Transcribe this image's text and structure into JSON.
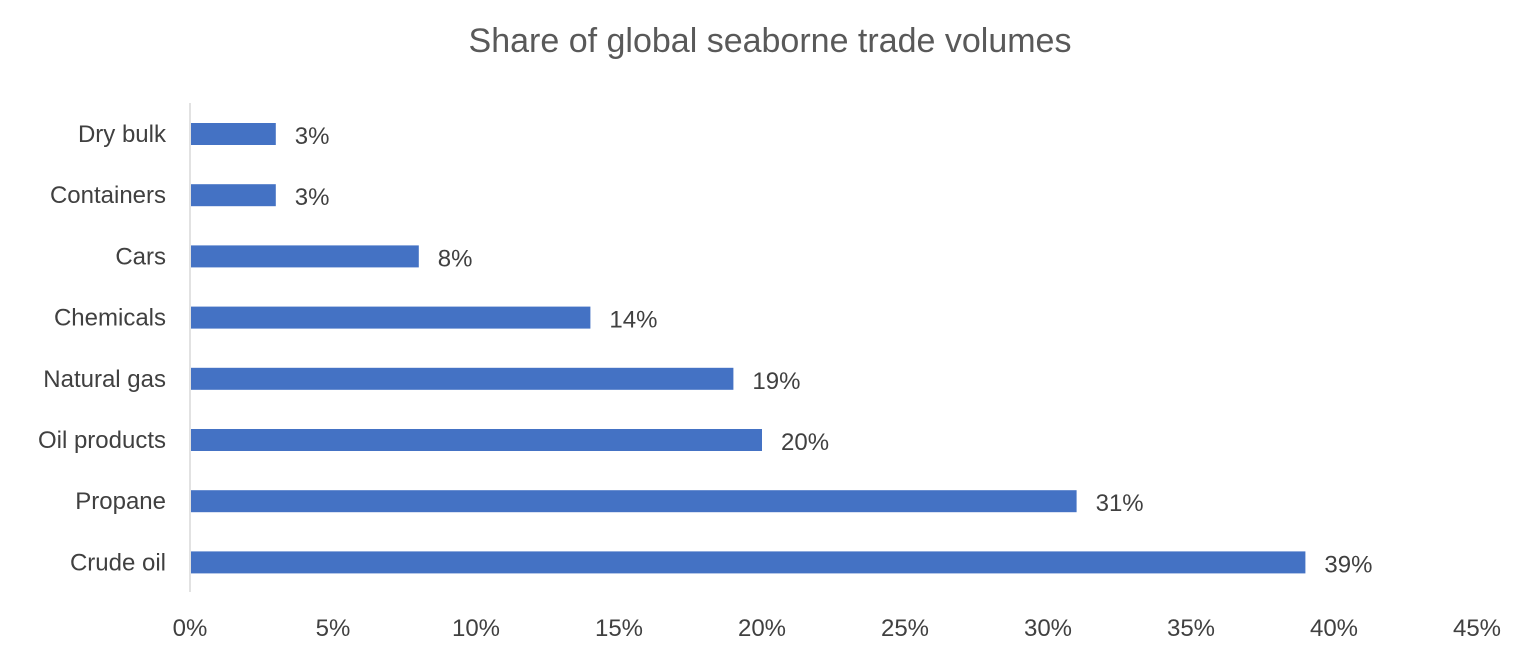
{
  "chart_data": {
    "type": "bar",
    "orientation": "horizontal",
    "title": "Share of global seaborne trade volumes",
    "categories": [
      "Dry bulk",
      "Containers",
      "Cars",
      "Chemicals",
      "Natural gas",
      "Oil products",
      "Propane",
      "Crude oil"
    ],
    "values": [
      3,
      3,
      8,
      14,
      19,
      20,
      31,
      39
    ],
    "data_labels": [
      "3%",
      "3%",
      "8%",
      "14%",
      "19%",
      "20%",
      "31%",
      "39%"
    ],
    "x_ticks": [
      "0%",
      "5%",
      "10%",
      "15%",
      "20%",
      "25%",
      "30%",
      "35%",
      "40%",
      "45%"
    ],
    "xlim": [
      0,
      45
    ],
    "xlabel": "",
    "ylabel": "",
    "grid": false,
    "legend": "none",
    "bar_color": "#4472C4",
    "axis_color": "#D9D9D9"
  }
}
